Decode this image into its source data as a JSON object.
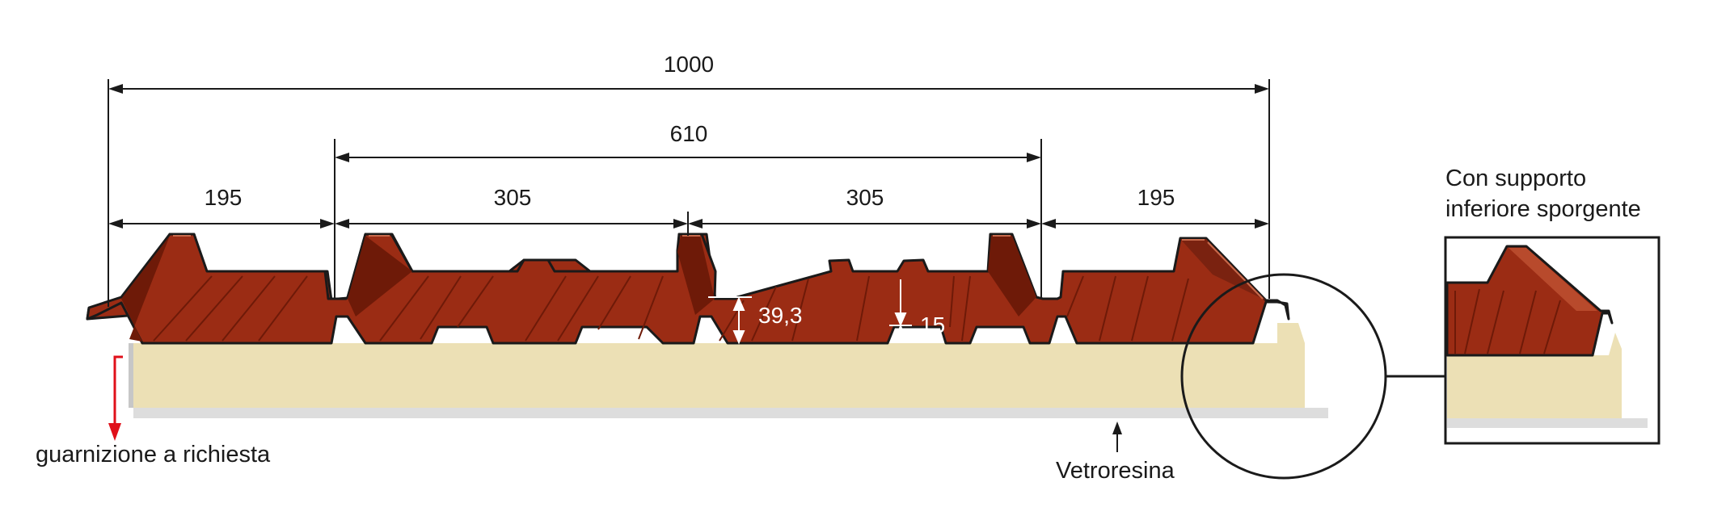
{
  "dimensions": {
    "total_width": "1000",
    "middle_span": "610",
    "left_edge": "195",
    "center_left": "305",
    "center_right": "305",
    "right_edge": "195",
    "rib_height": "39,3",
    "mini_rib_height": "15"
  },
  "labels": {
    "gasket": "guarnizione a richiesta",
    "fiberglass": "Vetroresina",
    "inset_title_line1": "Con supporto",
    "inset_title_line2": "inferiore sporgente"
  },
  "colors": {
    "sheet": "#9b2c14",
    "sheet_dark": "#6e1a08",
    "sheet_light": "#b84a2c",
    "foam": "#ece0b5",
    "fiberglass": "#dddddd",
    "arrow_red": "#e0101a",
    "line": "#1a1a1a"
  }
}
